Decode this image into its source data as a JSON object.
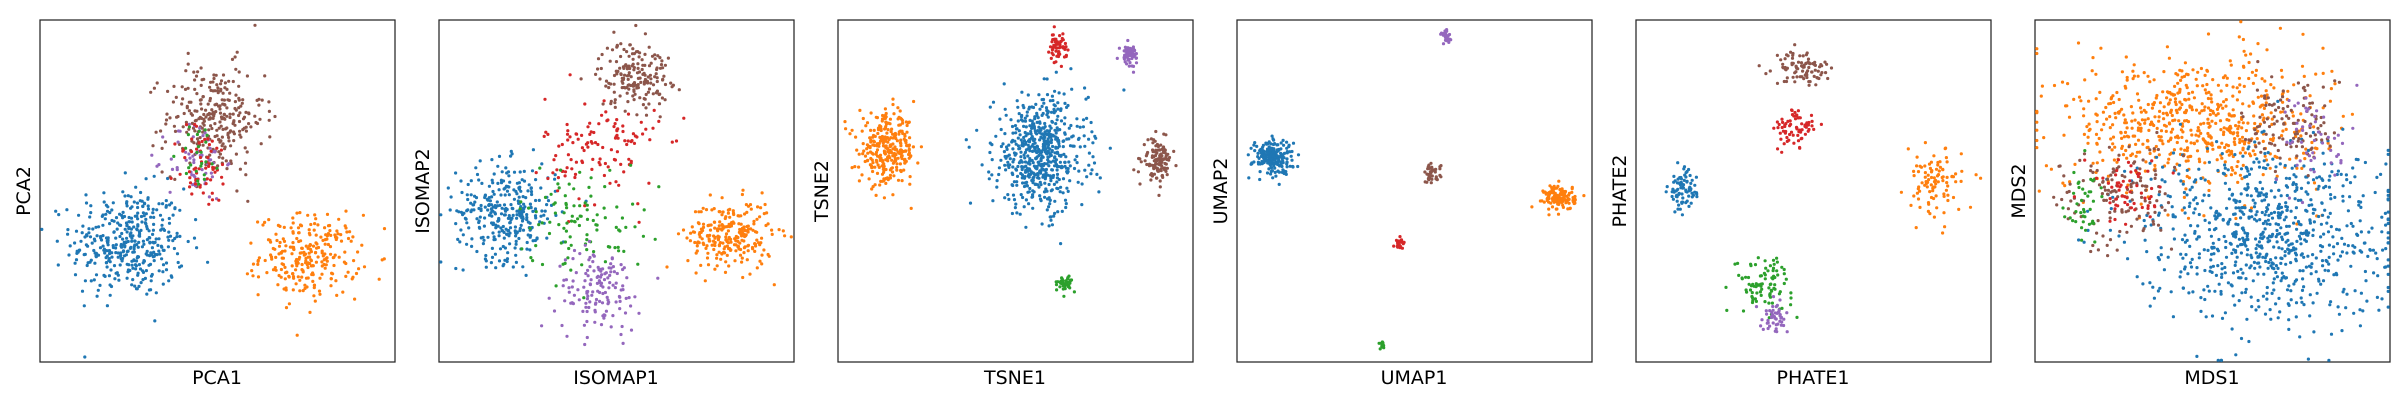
{
  "colors": {
    "blue": "#1f77b4",
    "orange": "#ff7f0e",
    "green": "#2ca02c",
    "red": "#d62728",
    "purple": "#9467bd",
    "brown": "#8c564b"
  },
  "chart_data": [
    {
      "type": "scatter",
      "title": "",
      "xlabel": "PCA1",
      "ylabel": "PCA2",
      "xlim": [
        0,
        100
      ],
      "ylim": [
        0,
        100
      ],
      "grid": false,
      "ticks": false,
      "clusters": [
        {
          "color": "blue",
          "cx": 25,
          "cy": 35,
          "sx": 8,
          "sy": 8,
          "n": 400
        },
        {
          "color": "orange",
          "cx": 76,
          "cy": 31,
          "sx": 7,
          "sy": 6,
          "n": 260
        },
        {
          "color": "brown",
          "cx": 49,
          "cy": 71,
          "sx": 7,
          "sy": 8,
          "n": 280
        },
        {
          "color": "purple",
          "cx": 44,
          "cy": 59,
          "sx": 4,
          "sy": 6,
          "n": 60
        },
        {
          "color": "red",
          "cx": 46,
          "cy": 57,
          "sx": 4,
          "sy": 6,
          "n": 60
        },
        {
          "color": "green",
          "cx": 45,
          "cy": 61,
          "sx": 3,
          "sy": 5,
          "n": 25
        }
      ]
    },
    {
      "type": "scatter",
      "title": "",
      "xlabel": "ISOMAP1",
      "ylabel": "ISOMAP2",
      "xlim": [
        0,
        100
      ],
      "ylim": [
        0,
        100
      ],
      "grid": false,
      "ticks": false,
      "clusters": [
        {
          "color": "blue",
          "cx": 19,
          "cy": 44,
          "sx": 7,
          "sy": 7,
          "n": 320
        },
        {
          "color": "orange",
          "cx": 82,
          "cy": 37,
          "sx": 6,
          "sy": 5,
          "n": 260
        },
        {
          "color": "brown",
          "cx": 55,
          "cy": 84,
          "sx": 5,
          "sy": 5,
          "n": 180
        },
        {
          "color": "red",
          "cx": 46,
          "cy": 62,
          "sx": 8,
          "sy": 8,
          "n": 120
        },
        {
          "color": "green",
          "cx": 40,
          "cy": 42,
          "sx": 9,
          "sy": 8,
          "n": 100
        },
        {
          "color": "purple",
          "cx": 45,
          "cy": 21,
          "sx": 6,
          "sy": 6,
          "n": 140
        }
      ]
    },
    {
      "type": "scatter",
      "title": "",
      "xlabel": "TSNE1",
      "ylabel": "TSNE2",
      "xlim": [
        0,
        100
      ],
      "ylim": [
        0,
        100
      ],
      "grid": false,
      "ticks": false,
      "clusters": [
        {
          "color": "blue",
          "cx": 57,
          "cy": 61,
          "sx": 6.5,
          "sy": 8.5,
          "n": 600
        },
        {
          "color": "orange",
          "cx": 14,
          "cy": 62,
          "sx": 4,
          "sy": 5,
          "n": 300
        },
        {
          "color": "brown",
          "cx": 90,
          "cy": 59,
          "sx": 2,
          "sy": 3,
          "n": 120
        },
        {
          "color": "red",
          "cx": 62,
          "cy": 92,
          "sx": 1.2,
          "sy": 2,
          "n": 60
        },
        {
          "color": "purple",
          "cx": 82,
          "cy": 90,
          "sx": 1.2,
          "sy": 1.5,
          "n": 60
        },
        {
          "color": "green",
          "cx": 64,
          "cy": 23,
          "sx": 1,
          "sy": 1.2,
          "n": 40
        }
      ]
    },
    {
      "type": "scatter",
      "title": "",
      "xlabel": "UMAP1",
      "ylabel": "UMAP2",
      "xlim": [
        0,
        100
      ],
      "ylim": [
        0,
        100
      ],
      "grid": false,
      "ticks": false,
      "clusters": [
        {
          "color": "blue",
          "cx": 10,
          "cy": 60,
          "sx": 2.8,
          "sy": 2.5,
          "n": 200
        },
        {
          "color": "orange",
          "cx": 91,
          "cy": 48,
          "sx": 2.2,
          "sy": 1.8,
          "n": 130
        },
        {
          "color": "brown",
          "cx": 55,
          "cy": 55,
          "sx": 1.2,
          "sy": 1.5,
          "n": 40
        },
        {
          "color": "purple",
          "cx": 59,
          "cy": 95,
          "sx": 0.8,
          "sy": 1,
          "n": 25
        },
        {
          "color": "red",
          "cx": 46,
          "cy": 35,
          "sx": 0.7,
          "sy": 0.9,
          "n": 20
        },
        {
          "color": "green",
          "cx": 41,
          "cy": 5,
          "sx": 0.5,
          "sy": 0.6,
          "n": 12
        }
      ]
    },
    {
      "type": "scatter",
      "title": "",
      "xlabel": "PHATE1",
      "ylabel": "PHATE2",
      "xlim": [
        0,
        100
      ],
      "ylim": [
        0,
        100
      ],
      "grid": false,
      "ticks": false,
      "clusters": [
        {
          "color": "blue",
          "cx": 13,
          "cy": 50,
          "sx": 2,
          "sy": 3,
          "n": 80
        },
        {
          "color": "orange",
          "cx": 84,
          "cy": 52,
          "sx": 4,
          "sy": 5,
          "n": 100
        },
        {
          "color": "brown",
          "cx": 47,
          "cy": 86,
          "sx": 4,
          "sy": 2.5,
          "n": 90
        },
        {
          "color": "red",
          "cx": 45,
          "cy": 68,
          "sx": 3,
          "sy": 3,
          "n": 70
        },
        {
          "color": "green",
          "cx": 36,
          "cy": 23,
          "sx": 4,
          "sy": 4,
          "n": 90
        },
        {
          "color": "purple",
          "cx": 39,
          "cy": 13,
          "sx": 2,
          "sy": 2,
          "n": 50
        }
      ]
    },
    {
      "type": "scatter",
      "title": "",
      "xlabel": "MDS1",
      "ylabel": "MDS2",
      "xlim": [
        0,
        100
      ],
      "ylim": [
        0,
        100
      ],
      "grid": false,
      "ticks": false,
      "clusters": [
        {
          "color": "orange",
          "cx": 45,
          "cy": 70,
          "sx": 18,
          "sy": 10,
          "n": 650
        },
        {
          "color": "blue",
          "cx": 65,
          "cy": 38,
          "sx": 18,
          "sy": 13,
          "n": 800
        },
        {
          "color": "brown",
          "cx": 23,
          "cy": 48,
          "sx": 8,
          "sy": 8,
          "n": 130
        },
        {
          "color": "brown",
          "cx": 73,
          "cy": 70,
          "sx": 7,
          "sy": 7,
          "n": 110
        },
        {
          "color": "purple",
          "cx": 79,
          "cy": 66,
          "sx": 5,
          "sy": 7,
          "n": 50
        },
        {
          "color": "green",
          "cx": 14,
          "cy": 45,
          "sx": 3,
          "sy": 6,
          "n": 40
        },
        {
          "color": "red",
          "cx": 26,
          "cy": 50,
          "sx": 5,
          "sy": 5,
          "n": 60
        }
      ]
    }
  ]
}
